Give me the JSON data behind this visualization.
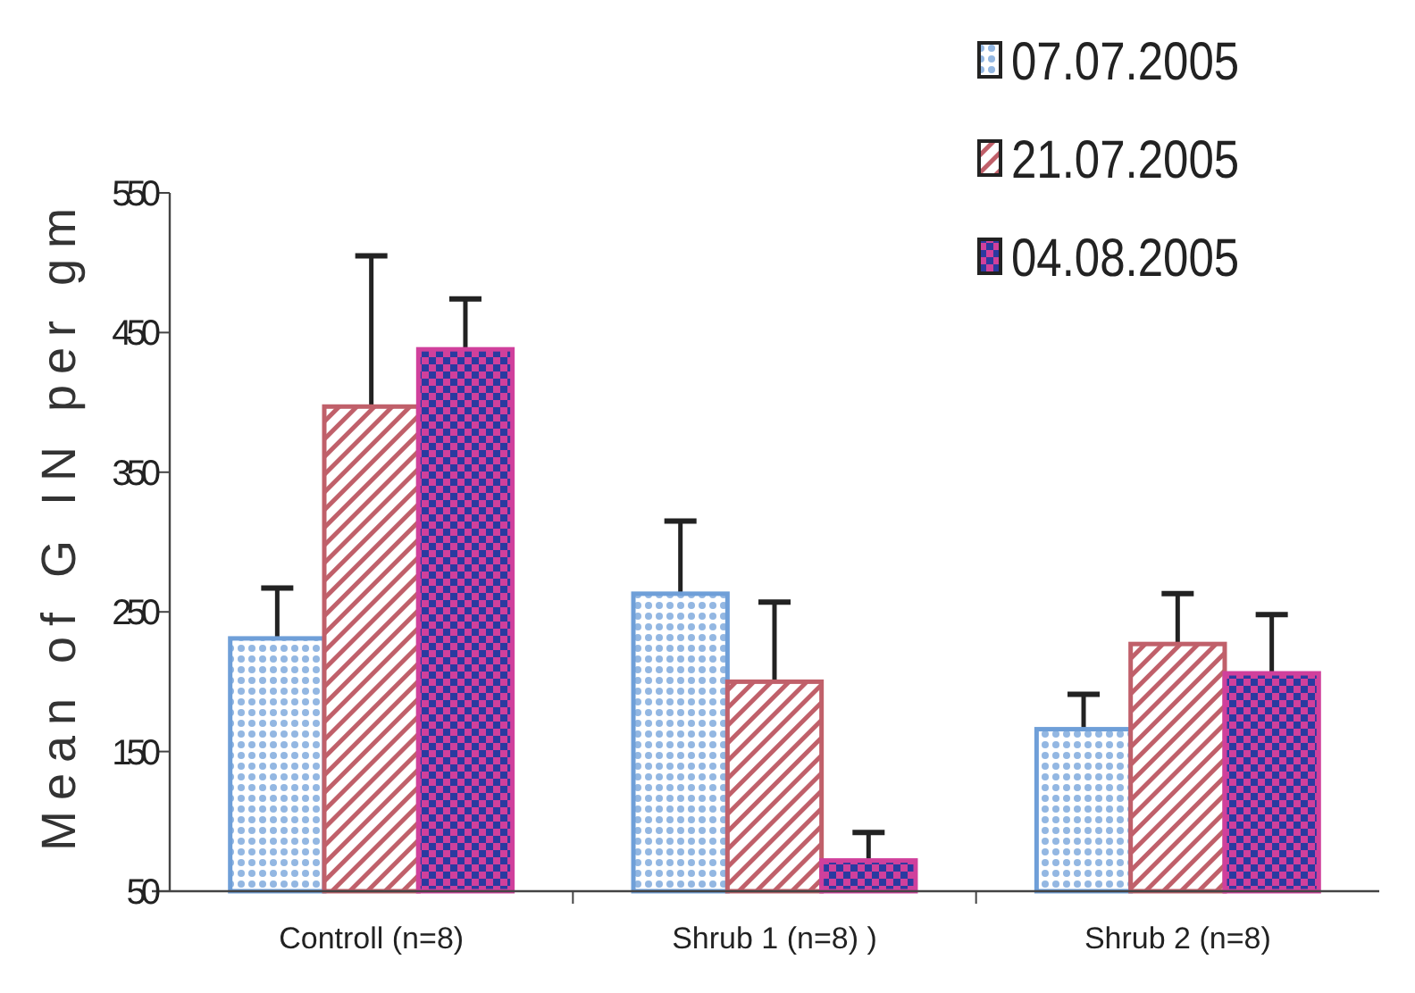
{
  "chart_data": {
    "type": "bar",
    "ylabel": "Mean of G IN per gm",
    "categories": [
      "Controll (n=8)",
      "Shrub 1 (n=8) )",
      "Shrub 2 (n=8)"
    ],
    "series": [
      {
        "name": "07.07.2005",
        "color": "#6f9fd8",
        "values": [
          231,
          263,
          166
        ],
        "errors": [
          [
            231,
            267
          ],
          [
            263,
            315
          ],
          [
            166,
            191
          ]
        ]
      },
      {
        "name": "21.07.2005",
        "color": "#c0606a",
        "values": [
          397,
          200,
          227
        ],
        "errors": [
          [
            397,
            505
          ],
          [
            200,
            257
          ],
          [
            227,
            263
          ]
        ]
      },
      {
        "name": "04.08.2005",
        "color": "#d0409c",
        "values": [
          438,
          72,
          206
        ],
        "errors": [
          [
            438,
            474
          ],
          [
            72,
            92
          ],
          [
            206,
            248
          ]
        ]
      }
    ],
    "ylim": [
      50,
      550
    ],
    "yticks": [
      50,
      150,
      250,
      350,
      450,
      550
    ],
    "grid": false,
    "legend": "top right"
  }
}
